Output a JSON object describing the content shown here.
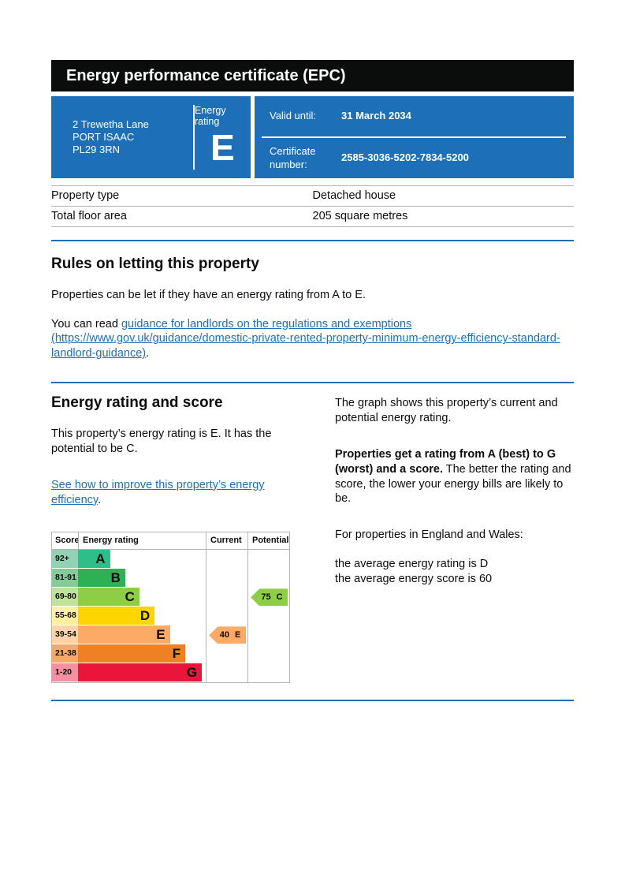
{
  "certificate": {
    "title": "Energy performance certificate (EPC)",
    "address_lines": [
      "2 Trewetha Lane",
      "PORT ISAAC",
      "PL29 3RN"
    ],
    "energy_rating_label": "Energy rating",
    "energy_rating": "E",
    "valid_until_label": "Valid until:",
    "valid_until": "31 March 2034",
    "certificate_number_label": "Certificate number:",
    "certificate_number": "2585-3036-5202-7834-5200"
  },
  "property_table": {
    "rows": [
      {
        "label": "Property type",
        "value": "Detached house"
      },
      {
        "label": "Total floor area",
        "value": "205 square metres"
      }
    ]
  },
  "rules_section": {
    "heading": "Rules on letting this property",
    "para1": "Properties can be let if they have an energy rating from A to E.",
    "para2_prefix": "You can read ",
    "para2_link": "guidance for landlords on the regulations and exemptions (https://www.gov.uk/guidance/domestic-private-rented-property-minimum-energy-efficiency-standard-landlord-guidance)",
    "para2_suffix": "."
  },
  "rating_section": {
    "heading": "Energy rating and score",
    "para1": "This property’s energy rating is E. It has the potential to be C.",
    "improve_link": "See how to improve this property’s energy efficiency",
    "improve_link_suffix": ".",
    "right_para1": "The graph shows this property’s current and potential energy rating.",
    "right_para2_bold": "Properties get a rating from A (best) to G (worst) and a score.",
    "right_para2_rest": " The better the rating and score, the lower your energy bills are likely to be.",
    "right_para3": "For properties in England and Wales:",
    "avg_rating_line": "the average energy rating is D",
    "avg_score_line": "the average energy score is 60"
  },
  "chart_data": {
    "type": "bar",
    "title": "Energy rating and score graph",
    "headers": [
      "Score",
      "Energy rating",
      "Current",
      "Potential"
    ],
    "bands": [
      {
        "letter": "A",
        "score_range": "92+",
        "color": "#2ebe8a",
        "tint": "#8fd2b4",
        "bar_width_pct": 25
      },
      {
        "letter": "B",
        "score_range": "81-91",
        "color": "#2eb155",
        "tint": "#85cb97",
        "bar_width_pct": 37
      },
      {
        "letter": "C",
        "score_range": "69-80",
        "color": "#8dce46",
        "tint": "#c0e29a",
        "bar_width_pct": 48
      },
      {
        "letter": "D",
        "score_range": "55-68",
        "color": "#ffd500",
        "tint": "#fef0a0",
        "bar_width_pct": 60
      },
      {
        "letter": "E",
        "score_range": "39-54",
        "color": "#fcaa65",
        "tint": "#fdd4a9",
        "bar_width_pct": 72
      },
      {
        "letter": "F",
        "score_range": "21-38",
        "color": "#ef8023",
        "tint": "#f5a966",
        "bar_width_pct": 84
      },
      {
        "letter": "G",
        "score_range": "1-20",
        "color": "#e9153b",
        "tint": "#f4909f",
        "bar_width_pct": 97
      }
    ],
    "current": {
      "score": "40",
      "band": "E",
      "row_index": 4,
      "color": "#fcaa65"
    },
    "potential": {
      "score": "75",
      "band": "C",
      "row_index": 2,
      "color": "#8dce46"
    }
  },
  "colors": {
    "govuk_blue": "#1d70b8",
    "banner_black": "#0b0c0c",
    "border_grey": "#b1b4b6"
  }
}
